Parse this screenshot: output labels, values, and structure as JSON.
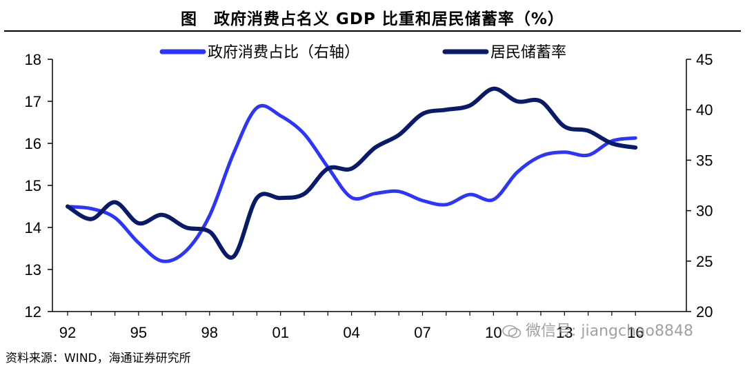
{
  "figure_title": "图　政府消费占名义 GDP 比重和居民储蓄率（%）",
  "source_note": "资料来源：WIND，海通证券研究所",
  "watermark": "微信号: jiangchao8848",
  "colors": {
    "gov_consumption": "#2b35ff",
    "household_saving": "#0a1a6a",
    "axis": "#000000"
  },
  "chart_data": {
    "type": "line",
    "title": "政府消费占名义 GDP 比重和居民储蓄率（%）",
    "x_tick_labels": [
      "92",
      "95",
      "98",
      "01",
      "04",
      "07",
      "10",
      "13",
      "16"
    ],
    "x_range": [
      1992,
      2016
    ],
    "left_axis": {
      "ticks": [
        "12",
        "13",
        "14",
        "15",
        "16",
        "17",
        "18"
      ],
      "range": [
        12,
        18
      ]
    },
    "right_axis": {
      "ticks": [
        "20",
        "25",
        "30",
        "35",
        "40",
        "45"
      ],
      "range": [
        20,
        45
      ]
    },
    "grid": false,
    "legend_position": "top",
    "series": [
      {
        "name": "政府消费占比（右轴）",
        "axis": "right",
        "color": "#2b35ff",
        "x": [
          1992,
          1993,
          1994,
          1995,
          1996,
          1997,
          1998,
          1999,
          2000,
          2001,
          2002,
          2003,
          2004,
          2005,
          2006,
          2007,
          2008,
          2009,
          2010,
          2011,
          2012,
          2013,
          2014,
          2015,
          2016
        ],
        "values": [
          30.4,
          30.2,
          29.3,
          26.8,
          25.0,
          26.0,
          29.5,
          35.6,
          40.2,
          39.4,
          37.6,
          34.3,
          31.3,
          31.7,
          31.9,
          31.0,
          30.6,
          31.6,
          31.1,
          33.8,
          35.4,
          35.8,
          35.5,
          36.9,
          37.2
        ]
      },
      {
        "name": "居民储蓄率",
        "axis": "left",
        "color": "#0a1a6a",
        "x": [
          1992,
          1993,
          1994,
          1995,
          1996,
          1997,
          1998,
          1999,
          2000,
          2001,
          2002,
          2003,
          2004,
          2005,
          2006,
          2007,
          2008,
          2009,
          2010,
          2011,
          2012,
          2013,
          2014,
          2015,
          2016
        ],
        "values": [
          14.5,
          14.2,
          14.6,
          14.1,
          14.3,
          14.0,
          13.9,
          13.3,
          14.7,
          14.7,
          14.8,
          15.4,
          15.4,
          15.9,
          16.2,
          16.7,
          16.8,
          16.9,
          17.3,
          17.0,
          17.0,
          16.4,
          16.3,
          16.0,
          15.9
        ]
      }
    ]
  }
}
